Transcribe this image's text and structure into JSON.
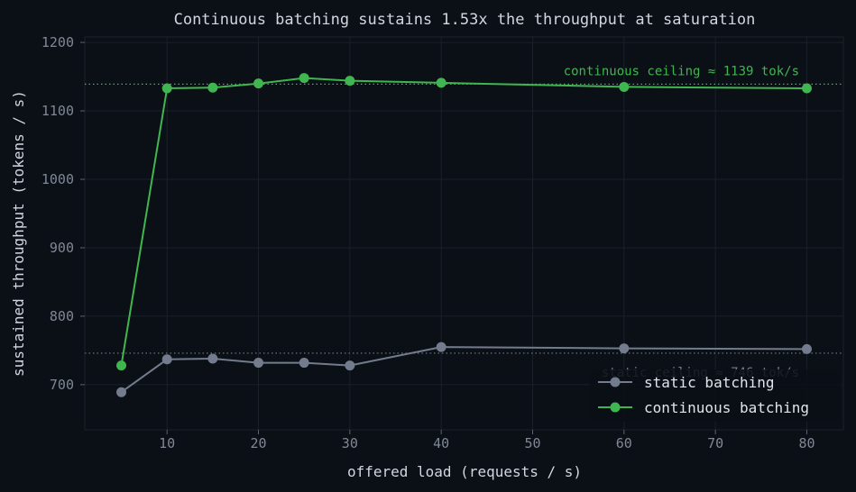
{
  "chart_data": {
    "type": "line",
    "title": "Continuous batching sustains 1.53x the throughput at saturation",
    "xlabel": "offered load (requests / s)",
    "ylabel": "sustained throughput (tokens / s)",
    "xlim": [
      1,
      84
    ],
    "ylim": [
      634,
      1208
    ],
    "xticks": [
      10,
      20,
      30,
      40,
      50,
      60,
      70,
      80
    ],
    "yticks": [
      700,
      800,
      900,
      1000,
      1100,
      1200
    ],
    "grid": true,
    "legend_position": "bottom-right",
    "series": [
      {
        "name": "static batching",
        "color": "#737c8c",
        "x": [
          5,
          10,
          15,
          20,
          25,
          30,
          40,
          60,
          80
        ],
        "y": [
          689,
          737,
          738,
          732,
          732,
          728,
          755,
          753,
          752
        ]
      },
      {
        "name": "continuous batching",
        "color": "#3fb64f",
        "x": [
          5,
          10,
          15,
          20,
          25,
          30,
          40,
          60,
          80
        ],
        "y": [
          728,
          1133,
          1134,
          1140,
          1148,
          1144,
          1141,
          1135,
          1133
        ]
      }
    ],
    "reference_lines": [
      {
        "y": 1139,
        "label": "continuous ceiling ≈ 1139 tok/s",
        "color": "#3fb64f"
      },
      {
        "y": 746,
        "label": "static ceiling ≈ 746 tok/s",
        "color": "#737c8c"
      }
    ]
  }
}
